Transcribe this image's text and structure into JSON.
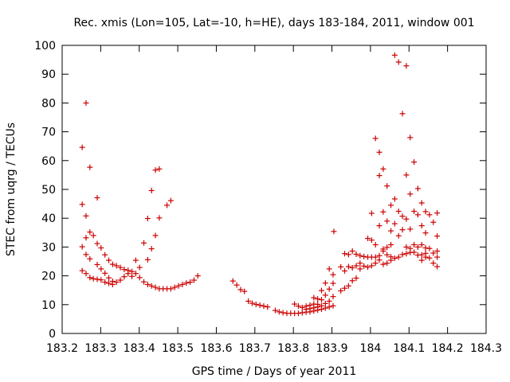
{
  "chart_data": {
    "type": "scatter",
    "title": "Rec. xmis (Lon=105, Lat=-10, h=HE), days 183-184, 2011, window 001",
    "xlabel": "GPS time / Days of year 2011",
    "ylabel": "STEC from uqrg / TECUs",
    "xlim": [
      183.2,
      184.3
    ],
    "ylim": [
      0,
      100
    ],
    "xticks": [
      183.2,
      183.3,
      183.4,
      183.5,
      183.6,
      183.7,
      183.8,
      183.9,
      184.0,
      184.1,
      184.2,
      184.3
    ],
    "xtick_labels": [
      "183.2",
      "183.3",
      "183.4",
      "183.5",
      "183.6",
      "183.7",
      "183.8",
      "183.9",
      "184",
      "184.1",
      "184.2",
      "184.3"
    ],
    "yticks": [
      0,
      10,
      20,
      30,
      40,
      50,
      60,
      70,
      80,
      90,
      100
    ],
    "ytick_labels": [
      "0",
      "10",
      "20",
      "30",
      "40",
      "50",
      "60",
      "70",
      "80",
      "90",
      "100"
    ],
    "grid": false,
    "legend": "none",
    "marker": "+",
    "marker_color": "#cc0000",
    "points": [
      [
        183.252,
        64.6
      ],
      [
        183.252,
        44.8
      ],
      [
        183.252,
        30.1
      ],
      [
        183.252,
        21.8
      ],
      [
        183.262,
        80.0
      ],
      [
        183.262,
        40.8
      ],
      [
        183.262,
        33.2
      ],
      [
        183.262,
        27.4
      ],
      [
        183.262,
        20.8
      ],
      [
        183.272,
        57.7
      ],
      [
        183.272,
        35.2
      ],
      [
        183.272,
        25.9
      ],
      [
        183.272,
        19.4
      ],
      [
        183.281,
        34.0
      ],
      [
        183.281,
        19.0
      ],
      [
        183.291,
        47.1
      ],
      [
        183.291,
        31.2
      ],
      [
        183.291,
        23.9
      ],
      [
        183.291,
        18.8
      ],
      [
        183.301,
        29.7
      ],
      [
        183.301,
        22.4
      ],
      [
        183.301,
        18.6
      ],
      [
        183.311,
        27.3
      ],
      [
        183.311,
        20.9
      ],
      [
        183.311,
        17.8
      ],
      [
        183.321,
        25.4
      ],
      [
        183.321,
        19.3
      ],
      [
        183.321,
        17.4
      ],
      [
        183.331,
        24.0
      ],
      [
        183.331,
        18.1
      ],
      [
        183.331,
        17.0
      ],
      [
        183.341,
        23.5
      ],
      [
        183.341,
        17.8
      ],
      [
        183.351,
        22.9
      ],
      [
        183.351,
        18.5
      ],
      [
        183.361,
        22.2
      ],
      [
        183.361,
        19.7
      ],
      [
        183.371,
        21.9
      ],
      [
        183.371,
        20.8
      ],
      [
        183.381,
        21.5
      ],
      [
        183.381,
        19.8
      ],
      [
        183.391,
        25.4
      ],
      [
        183.391,
        20.8
      ],
      [
        183.401,
        22.9
      ],
      [
        183.401,
        19.4
      ],
      [
        183.412,
        31.4
      ],
      [
        183.412,
        17.9
      ],
      [
        183.422,
        39.9
      ],
      [
        183.422,
        25.6
      ],
      [
        183.422,
        17.0
      ],
      [
        183.432,
        49.6
      ],
      [
        183.432,
        29.4
      ],
      [
        183.432,
        16.5
      ],
      [
        183.442,
        56.7
      ],
      [
        183.442,
        34.0
      ],
      [
        183.442,
        16.0
      ],
      [
        183.452,
        57.1
      ],
      [
        183.452,
        40.1
      ],
      [
        183.452,
        15.5
      ],
      [
        183.462,
        15.5
      ],
      [
        183.472,
        44.5
      ],
      [
        183.472,
        15.5
      ],
      [
        183.482,
        46.1
      ],
      [
        183.482,
        15.5
      ],
      [
        183.492,
        16.0
      ],
      [
        183.502,
        16.5
      ],
      [
        183.512,
        17.0
      ],
      [
        183.522,
        17.5
      ],
      [
        183.532,
        17.8
      ],
      [
        183.542,
        18.5
      ],
      [
        183.552,
        20.0
      ],
      [
        183.643,
        18.2
      ],
      [
        183.653,
        16.8
      ],
      [
        183.663,
        15.2
      ],
      [
        183.673,
        14.6
      ],
      [
        183.683,
        11.2
      ],
      [
        183.693,
        10.5
      ],
      [
        183.703,
        10.1
      ],
      [
        183.713,
        9.8
      ],
      [
        183.723,
        9.5
      ],
      [
        183.733,
        9.2
      ],
      [
        183.753,
        8.0
      ],
      [
        183.763,
        7.5
      ],
      [
        183.773,
        7.2
      ],
      [
        183.783,
        7.0
      ],
      [
        183.793,
        7.0
      ],
      [
        183.803,
        7.0
      ],
      [
        183.803,
        10.2
      ],
      [
        183.813,
        7.0
      ],
      [
        183.813,
        9.5
      ],
      [
        183.823,
        7.2
      ],
      [
        183.823,
        9.0
      ],
      [
        183.833,
        7.4
      ],
      [
        183.833,
        9.5
      ],
      [
        183.833,
        8.4
      ],
      [
        183.843,
        7.5
      ],
      [
        183.843,
        9.8
      ],
      [
        183.843,
        8.6
      ],
      [
        183.853,
        7.8
      ],
      [
        183.853,
        12.4
      ],
      [
        183.853,
        10.2
      ],
      [
        183.853,
        8.9
      ],
      [
        183.863,
        8.1
      ],
      [
        183.863,
        12.0
      ],
      [
        183.863,
        10.1
      ],
      [
        183.863,
        9.2
      ],
      [
        183.873,
        8.4
      ],
      [
        183.873,
        14.9
      ],
      [
        183.873,
        11.7
      ],
      [
        183.873,
        9.6
      ],
      [
        183.883,
        8.8
      ],
      [
        183.883,
        17.5
      ],
      [
        183.883,
        13.3
      ],
      [
        183.883,
        10.4
      ],
      [
        183.893,
        9.2
      ],
      [
        183.893,
        22.4
      ],
      [
        183.893,
        15.4
      ],
      [
        183.893,
        11.2
      ],
      [
        183.903,
        9.6
      ],
      [
        183.903,
        20.4
      ],
      [
        183.903,
        17.4
      ],
      [
        183.903,
        12.8
      ],
      [
        183.905,
        35.4
      ],
      [
        183.923,
        23.1
      ],
      [
        183.923,
        14.8
      ],
      [
        183.933,
        27.7
      ],
      [
        183.933,
        21.7
      ],
      [
        183.933,
        15.7
      ],
      [
        183.943,
        27.4
      ],
      [
        183.943,
        23.2
      ],
      [
        183.943,
        16.5
      ],
      [
        183.953,
        28.6
      ],
      [
        183.953,
        22.8
      ],
      [
        183.953,
        18.3
      ],
      [
        183.963,
        27.5
      ],
      [
        183.963,
        23.5
      ],
      [
        183.963,
        19.2
      ],
      [
        183.973,
        27.0
      ],
      [
        183.973,
        24.4
      ],
      [
        183.973,
        22.4
      ],
      [
        183.983,
        26.7
      ],
      [
        183.983,
        23.4
      ],
      [
        183.993,
        26.5
      ],
      [
        183.993,
        33.0
      ],
      [
        183.993,
        23.0
      ],
      [
        184.003,
        26.5
      ],
      [
        184.003,
        41.7
      ],
      [
        184.003,
        32.4
      ],
      [
        184.003,
        23.5
      ],
      [
        184.013,
        26.5
      ],
      [
        184.013,
        67.7
      ],
      [
        184.013,
        30.8
      ],
      [
        184.013,
        24.4
      ],
      [
        184.023,
        27.0
      ],
      [
        184.023,
        62.9
      ],
      [
        184.023,
        54.8
      ],
      [
        184.023,
        37.4
      ],
      [
        184.023,
        25.5
      ],
      [
        184.033,
        28.6
      ],
      [
        184.033,
        57.1
      ],
      [
        184.033,
        42.2
      ],
      [
        184.033,
        29.3
      ],
      [
        184.033,
        24.0
      ],
      [
        184.043,
        29.9
      ],
      [
        184.043,
        51.2
      ],
      [
        184.043,
        39.0
      ],
      [
        184.043,
        27.3
      ],
      [
        184.043,
        24.4
      ],
      [
        184.053,
        30.8
      ],
      [
        184.053,
        44.5
      ],
      [
        184.053,
        35.6
      ],
      [
        184.053,
        26.6
      ],
      [
        184.053,
        25.4
      ],
      [
        184.063,
        96.6
      ],
      [
        184.063,
        46.7
      ],
      [
        184.063,
        38.1
      ],
      [
        184.063,
        26.1
      ],
      [
        184.073,
        94.2
      ],
      [
        184.073,
        42.4
      ],
      [
        184.073,
        33.9
      ],
      [
        184.073,
        26.5
      ],
      [
        184.083,
        76.3
      ],
      [
        184.083,
        40.7
      ],
      [
        184.083,
        36.0
      ],
      [
        184.083,
        27.4
      ],
      [
        184.093,
        92.9
      ],
      [
        184.093,
        55.0
      ],
      [
        184.093,
        39.7
      ],
      [
        184.093,
        30.0
      ],
      [
        184.093,
        27.7
      ],
      [
        184.103,
        68.0
      ],
      [
        184.103,
        48.4
      ],
      [
        184.103,
        36.2
      ],
      [
        184.103,
        29.5
      ],
      [
        184.103,
        28.1
      ],
      [
        184.113,
        59.5
      ],
      [
        184.113,
        42.4
      ],
      [
        184.113,
        30.8
      ],
      [
        184.113,
        28.2
      ],
      [
        184.123,
        50.3
      ],
      [
        184.123,
        41.2
      ],
      [
        184.123,
        30.0
      ],
      [
        184.123,
        27.2
      ],
      [
        184.133,
        45.3
      ],
      [
        184.133,
        37.4
      ],
      [
        184.133,
        30.8
      ],
      [
        184.133,
        27.3
      ],
      [
        184.133,
        25.4
      ],
      [
        184.143,
        42.3
      ],
      [
        184.143,
        34.9
      ],
      [
        184.143,
        29.7
      ],
      [
        184.143,
        27.8
      ],
      [
        184.143,
        26.5
      ],
      [
        184.153,
        41.2
      ],
      [
        184.153,
        29.5
      ],
      [
        184.153,
        26.2
      ],
      [
        184.163,
        38.6
      ],
      [
        184.163,
        27.9
      ],
      [
        184.163,
        24.4
      ],
      [
        184.173,
        41.8
      ],
      [
        184.173,
        33.8
      ],
      [
        184.173,
        28.6
      ],
      [
        184.173,
        26.5
      ],
      [
        184.173,
        23.2
      ]
    ]
  }
}
